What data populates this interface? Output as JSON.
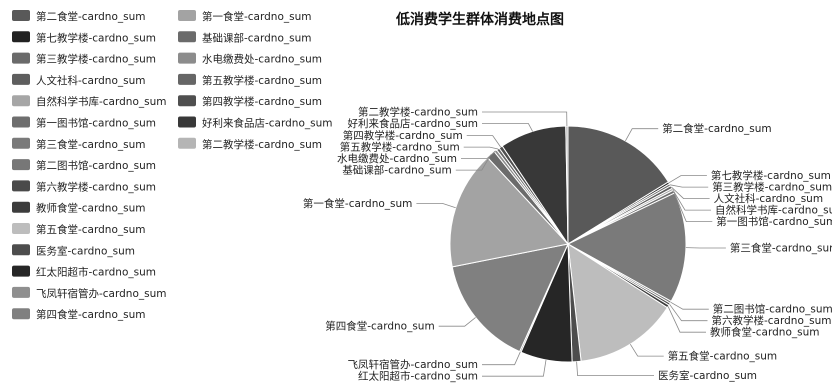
{
  "chart_data": {
    "type": "pie",
    "title": "低消费学生群体消费地点图",
    "series": [
      {
        "name": "第二食堂-cardno_sum",
        "color": "#595959",
        "value": 0.16
      },
      {
        "name": "第七教学楼-cardno_sum",
        "color": "#222222",
        "value": 0.003
      },
      {
        "name": "第三教学楼-cardno_sum",
        "color": "#6a6a6a",
        "value": 0.003
      },
      {
        "name": "人文社科-cardno_sum",
        "color": "#5e5e5e",
        "value": 0.004
      },
      {
        "name": "自然科学书库-cardno_sum",
        "color": "#a6a6a6",
        "value": 0.003
      },
      {
        "name": "第一图书馆-cardno_sum",
        "color": "#6e6e6e",
        "value": 0.004
      },
      {
        "name": "第三食堂-cardno_sum",
        "color": "#7a7a7a",
        "value": 0.15
      },
      {
        "name": "第二图书馆-cardno_sum",
        "color": "#777777",
        "value": 0.003
      },
      {
        "name": "第六教学楼-cardno_sum",
        "color": "#4a4a4a",
        "value": 0.003
      },
      {
        "name": "教师食堂-cardno_sum",
        "color": "#3c3c3c",
        "value": 0.004
      },
      {
        "name": "第五食堂-cardno_sum",
        "color": "#bdbdbd",
        "value": 0.14
      },
      {
        "name": "医务室-cardno_sum",
        "color": "#4d4d4d",
        "value": 0.012
      },
      {
        "name": "红太阳超市-cardno_sum",
        "color": "#262626",
        "value": 0.07
      },
      {
        "name": "飞凤轩宿管办-cardno_sum",
        "color": "#8f8f8f",
        "value": 0.002
      },
      {
        "name": "第四食堂-cardno_sum",
        "color": "#808080",
        "value": 0.15
      },
      {
        "name": "第一食堂-cardno_sum",
        "color": "#a3a3a3",
        "value": 0.16
      },
      {
        "name": "基础课部-cardno_sum",
        "color": "#6b6b6b",
        "value": 0.012
      },
      {
        "name": "水电缴费处-cardno_sum",
        "color": "#8c8c8c",
        "value": 0.004
      },
      {
        "name": "第五教学楼-cardno_sum",
        "color": "#666666",
        "value": 0.004
      },
      {
        "name": "第四教学楼-cardno_sum",
        "color": "#4f4f4f",
        "value": 0.005
      },
      {
        "name": "好利来食品店-cardno_sum",
        "color": "#383838",
        "value": 0.09
      },
      {
        "name": "第二教学楼-cardno_sum",
        "color": "#b5b5b5",
        "value": 0.003
      }
    ],
    "legend": {
      "placement": "top-left",
      "columns": [
        [
          "第二食堂-cardno_sum",
          "第七教学楼-cardno_sum",
          "第三教学楼-cardno_sum",
          "人文社科-cardno_sum",
          "自然科学书库-cardno_sum",
          "第一图书馆-cardno_sum",
          "第三食堂-cardno_sum",
          "第二图书馆-cardno_sum",
          "第六教学楼-cardno_sum",
          "教师食堂-cardno_sum",
          "第五食堂-cardno_sum",
          "医务室-cardno_sum",
          "红太阳超市-cardno_sum",
          "飞凤轩宿管办-cardno_sum",
          "第四食堂-cardno_sum"
        ],
        [
          "第一食堂-cardno_sum",
          "基础课部-cardno_sum",
          "水电缴费处-cardno_sum",
          "第五教学楼-cardno_sum",
          "第四教学楼-cardno_sum",
          "好利来食品店-cardno_sum",
          "第二教学楼-cardno_sum"
        ]
      ]
    }
  }
}
